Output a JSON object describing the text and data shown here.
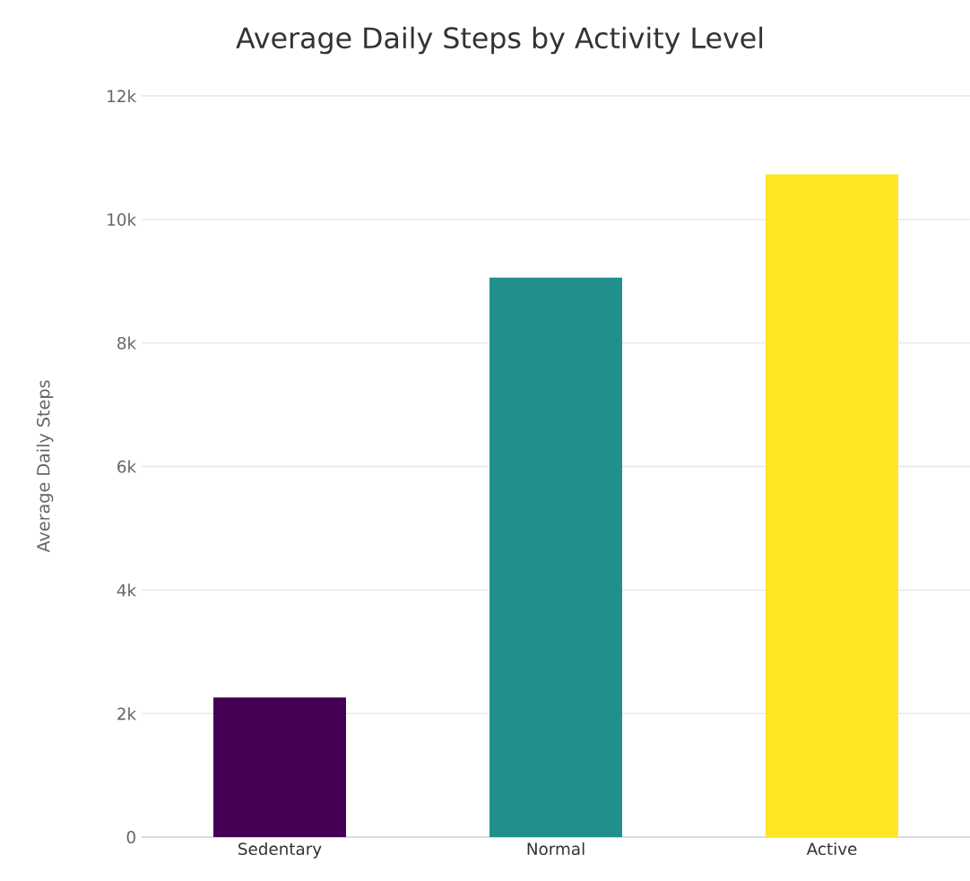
{
  "chart_data": {
    "type": "bar",
    "title": "Average Daily Steps by Activity Level",
    "ylabel": "Average Daily Steps",
    "categories": [
      "Sedentary",
      "Normal",
      "Active"
    ],
    "values": [
      2260,
      9060,
      10730
    ],
    "colors": [
      "#440154",
      "#21908d",
      "#fde725"
    ],
    "ylim": [
      0,
      12000
    ],
    "yticks": [
      {
        "value": 0,
        "label": "0"
      },
      {
        "value": 2000,
        "label": "2k"
      },
      {
        "value": 4000,
        "label": "4k"
      },
      {
        "value": 6000,
        "label": "6k"
      },
      {
        "value": 8000,
        "label": "8k"
      },
      {
        "value": 10000,
        "label": "10k"
      },
      {
        "value": 12000,
        "label": "12k"
      }
    ],
    "grid": "y"
  }
}
